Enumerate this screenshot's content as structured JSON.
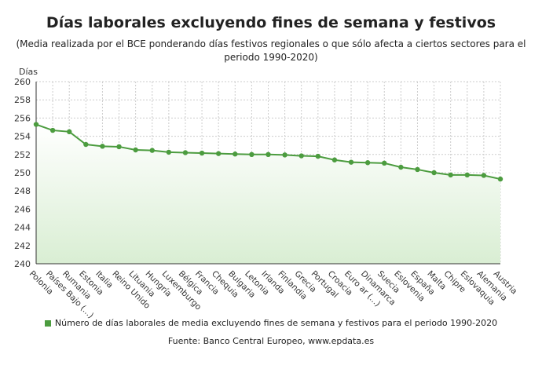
{
  "title": "Días laborales excluyendo fines de semana y festivos",
  "subtitle": "(Media realizada por el BCE ponderando días festivos regionales o que sólo afecta a ciertos sectores para el periodo 1990-2020)",
  "source": "Fuente: Banco Central Europeo, www.epdata.es",
  "chart_data": {
    "type": "area",
    "ylabel": "Días",
    "ylim": [
      240,
      260
    ],
    "yticks": [
      240,
      242,
      244,
      246,
      248,
      250,
      252,
      254,
      256,
      258,
      260
    ],
    "grid": true,
    "legend_placement": "bottom",
    "color": "#4c9c3f",
    "categories": [
      "Polonia",
      "Países Bajo (...)",
      "Rumania",
      "Estonia",
      "Italia",
      "Reino Unido",
      "Lituania",
      "Hungría",
      "Luxemburgo",
      "Bélgica",
      "Francia",
      "Chequia",
      "Bulgaria",
      "Letonia",
      "Irlanda",
      "Finlandia",
      "Grecia",
      "Portugal",
      "Croacia",
      "Euro ar (...)",
      "Dinamarca",
      "Suecia",
      "Eslovenia",
      "España",
      "Malta",
      "Chipre",
      "Eslovaquia",
      "Alemania",
      "Austria"
    ],
    "series": [
      {
        "name": "Número de días laborales de media excluyendo fines de semana y festivos para el periodo 1990-2020",
        "values": [
          255.3,
          254.65,
          254.5,
          253.1,
          252.9,
          252.85,
          252.5,
          252.45,
          252.25,
          252.2,
          252.15,
          252.1,
          252.05,
          252.0,
          252.0,
          251.95,
          251.85,
          251.8,
          251.4,
          251.15,
          251.1,
          251.05,
          250.6,
          250.35,
          250.0,
          249.75,
          249.75,
          249.7,
          249.3
        ]
      }
    ]
  }
}
